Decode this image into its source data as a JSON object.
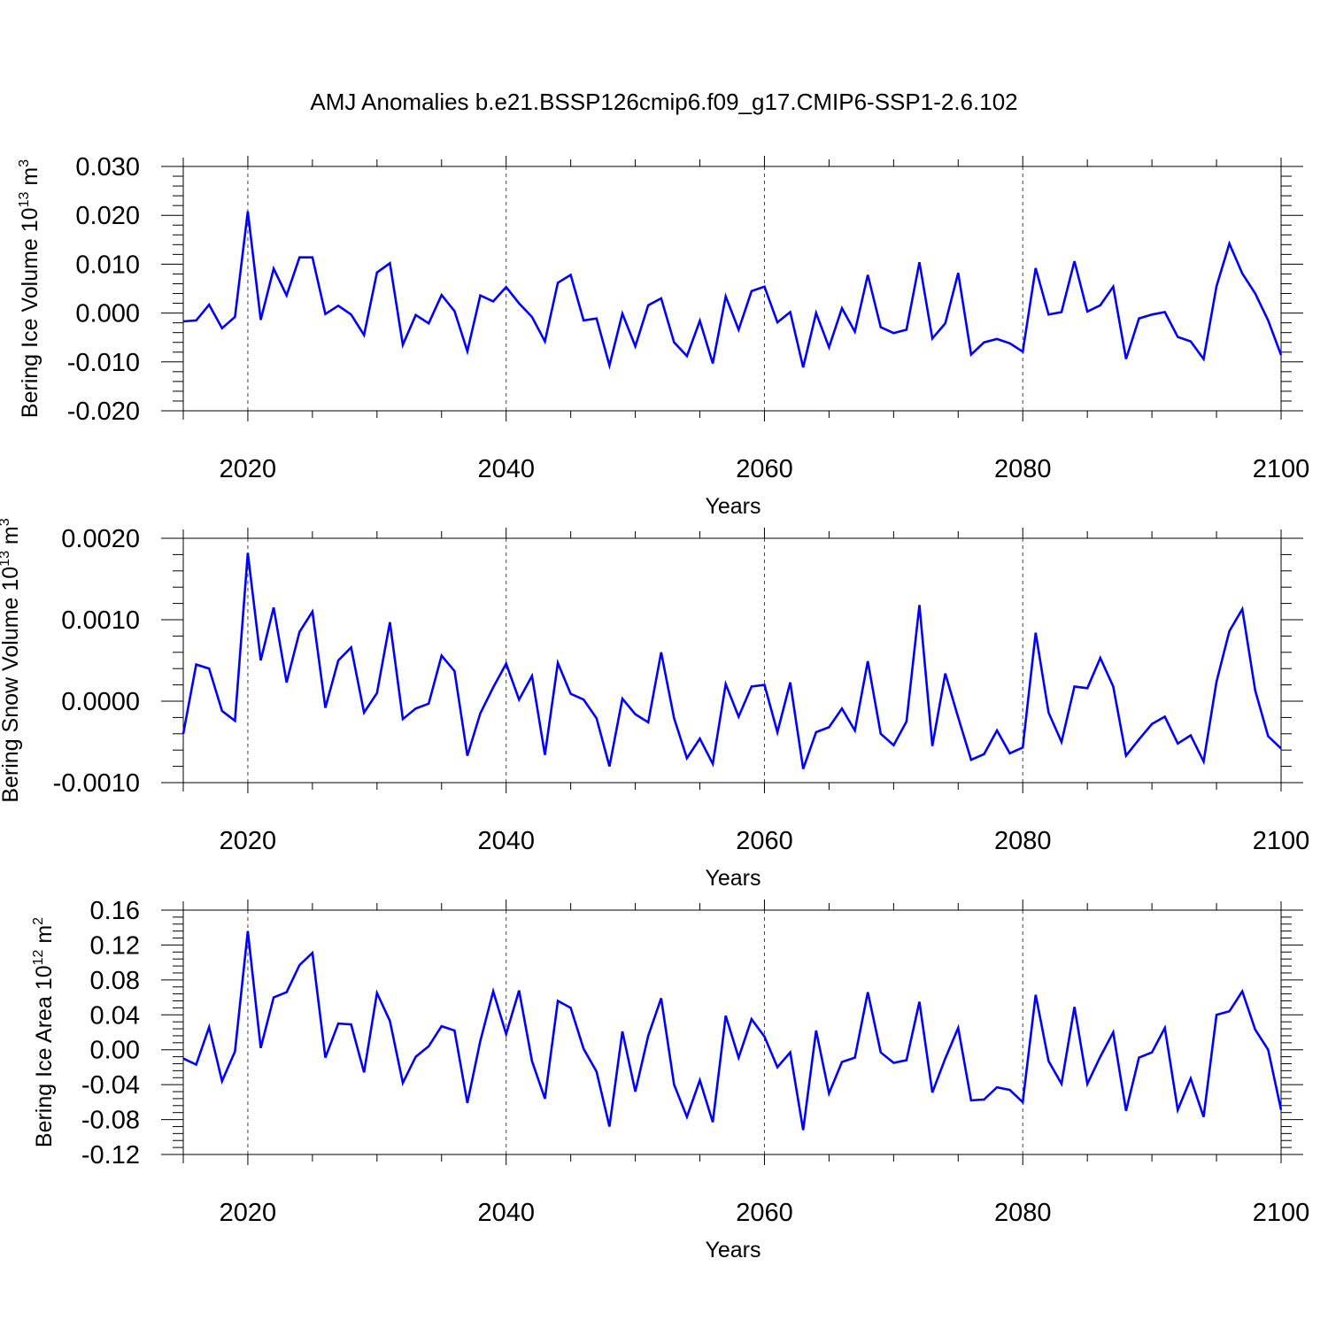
{
  "title": "AMJ Anomalies b.e21.BSSP126cmip6.f09_g17.CMIP6-SSP1-2.6.102",
  "line_color": "#0000ff",
  "chart_data": [
    {
      "type": "line",
      "ylabel_main": "Bering Ice Volume 10",
      "ylabel_exp": "13",
      "ylabel_unit": "m",
      "ylabel_unit_exp": "3",
      "xlabel": "Years",
      "xlim": [
        2015,
        2100
      ],
      "ylim": [
        -0.02,
        0.03
      ],
      "x_ticks": [
        2020,
        2040,
        2060,
        2080,
        2100
      ],
      "x_tick_labels": [
        "2020",
        "2040",
        "2060",
        "2080",
        "2100"
      ],
      "y_ticks": [
        -0.02,
        -0.01,
        0.0,
        0.01,
        0.02,
        0.03
      ],
      "y_tick_labels": [
        "-0.020",
        "-0.010",
        "0.000",
        "0.010",
        "0.020",
        "0.030"
      ],
      "grid": "dashed vertical at 2020, 2040, 2060, 2080",
      "x": [
        2015,
        2016,
        2017,
        2018,
        2019,
        2020,
        2021,
        2022,
        2023,
        2024,
        2025,
        2026,
        2027,
        2028,
        2029,
        2030,
        2031,
        2032,
        2033,
        2034,
        2035,
        2036,
        2037,
        2038,
        2039,
        2040,
        2041,
        2042,
        2043,
        2044,
        2045,
        2046,
        2047,
        2048,
        2049,
        2050,
        2051,
        2052,
        2053,
        2054,
        2055,
        2056,
        2057,
        2058,
        2059,
        2060,
        2061,
        2062,
        2063,
        2064,
        2065,
        2066,
        2067,
        2068,
        2069,
        2070,
        2071,
        2072,
        2073,
        2074,
        2075,
        2076,
        2077,
        2078,
        2079,
        2080,
        2081,
        2082,
        2083,
        2084,
        2085,
        2086,
        2087,
        2088,
        2089,
        2090,
        2091,
        2092,
        2093,
        2094,
        2095,
        2096,
        2097,
        2098,
        2099,
        2100
      ],
      "series": [
        {
          "values": [
            -0.0017,
            -0.0015,
            0.0017,
            -0.0031,
            -0.0008,
            0.0208,
            -0.0014,
            0.0091,
            0.0036,
            0.0114,
            0.0114,
            -0.0002,
            0.0015,
            -0.0003,
            -0.0045,
            0.0083,
            0.0102,
            -0.0065,
            -0.0004,
            -0.0021,
            0.0037,
            0.0004,
            -0.0078,
            0.0036,
            0.0024,
            0.0053,
            0.002,
            -0.0008,
            -0.0058,
            0.0062,
            0.0078,
            -0.0015,
            -0.0011,
            -0.0107,
            -0.0001,
            -0.0068,
            0.0016,
            0.003,
            -0.006,
            -0.0088,
            -0.0016,
            -0.0103,
            0.0034,
            -0.0034,
            0.0045,
            0.0054,
            -0.0019,
            0.0002,
            -0.0111,
            0.0,
            -0.007,
            0.001,
            -0.0038,
            0.0078,
            -0.0029,
            -0.0041,
            -0.0034,
            0.0104,
            -0.0052,
            -0.0021,
            0.0082,
            -0.0085,
            -0.006,
            -0.0053,
            -0.0062,
            -0.0079,
            0.0092,
            -0.0003,
            0.0002,
            0.0106,
            0.0003,
            0.0016,
            0.0054,
            -0.0094,
            -0.0011,
            -0.0003,
            0.0002,
            -0.0049,
            -0.0058,
            -0.0094,
            0.0055,
            0.0142,
            0.0081,
            0.004,
            -0.0015,
            -0.0086
          ]
        }
      ]
    },
    {
      "type": "line",
      "ylabel_main": "Bering Snow Volume 10",
      "ylabel_exp": "13",
      "ylabel_unit": "m",
      "ylabel_unit_exp": "3",
      "xlabel": "Years",
      "xlim": [
        2015,
        2100
      ],
      "ylim": [
        -0.001,
        0.002
      ],
      "x_ticks": [
        2020,
        2040,
        2060,
        2080,
        2100
      ],
      "x_tick_labels": [
        "2020",
        "2040",
        "2060",
        "2080",
        "2100"
      ],
      "y_ticks": [
        -0.001,
        0.0,
        0.001,
        0.002
      ],
      "y_tick_labels": [
        "-0.0010",
        "0.0000",
        "0.0010",
        "0.0020"
      ],
      "grid": "dashed vertical at 2020, 2040, 2060, 2080",
      "x": [
        2015,
        2016,
        2017,
        2018,
        2019,
        2020,
        2021,
        2022,
        2023,
        2024,
        2025,
        2026,
        2027,
        2028,
        2029,
        2030,
        2031,
        2032,
        2033,
        2034,
        2035,
        2036,
        2037,
        2038,
        2039,
        2040,
        2041,
        2042,
        2043,
        2044,
        2045,
        2046,
        2047,
        2048,
        2049,
        2050,
        2051,
        2052,
        2053,
        2054,
        2055,
        2056,
        2057,
        2058,
        2059,
        2060,
        2061,
        2062,
        2063,
        2064,
        2065,
        2066,
        2067,
        2068,
        2069,
        2070,
        2071,
        2072,
        2073,
        2074,
        2075,
        2076,
        2077,
        2078,
        2079,
        2080,
        2081,
        2082,
        2083,
        2084,
        2085,
        2086,
        2087,
        2088,
        2089,
        2090,
        2091,
        2092,
        2093,
        2094,
        2095,
        2096,
        2097,
        2098,
        2099,
        2100
      ],
      "series": [
        {
          "values": [
            -0.0004,
            0.00045,
            0.0004,
            -0.00012,
            -0.00024,
            0.00182,
            0.0005,
            0.00115,
            0.00023,
            0.00085,
            0.0011,
            -8e-05,
            0.0005,
            0.00066,
            -0.00014,
            0.0001,
            0.00097,
            -0.00022,
            -9e-05,
            -3e-05,
            0.00056,
            0.00037,
            -0.00067,
            -0.00015,
            0.00017,
            0.00046,
            2e-05,
            0.00031,
            -0.00066,
            0.00047,
            9e-05,
            2e-05,
            -0.00021,
            -0.0008,
            3e-05,
            -0.00016,
            -0.00026,
            0.0006,
            -0.00021,
            -0.0007,
            -0.00046,
            -0.00077,
            0.00021,
            -0.00019,
            0.00018,
            0.0002,
            -0.00038,
            0.00023,
            -0.00083,
            -0.00038,
            -0.00032,
            -9e-05,
            -0.00036,
            0.00049,
            -0.0004,
            -0.00054,
            -0.00025,
            0.00118,
            -0.00055,
            0.00034,
            -0.0002,
            -0.00072,
            -0.00065,
            -0.00036,
            -0.00064,
            -0.00057,
            0.00084,
            -0.00014,
            -0.0005,
            0.00018,
            0.00016,
            0.00053,
            0.00018,
            -0.00067,
            -0.00047,
            -0.00028,
            -0.00019,
            -0.00052,
            -0.00042,
            -0.00074,
            0.00024,
            0.00086,
            0.00113,
            0.00013,
            -0.00043,
            -0.00058
          ]
        }
      ]
    },
    {
      "type": "line",
      "ylabel_main": "Bering Ice Area 10",
      "ylabel_exp": "12",
      "ylabel_unit": "m",
      "ylabel_unit_exp": "2",
      "xlabel": "Years",
      "xlim": [
        2015,
        2100
      ],
      "ylim": [
        -0.12,
        0.16
      ],
      "x_ticks": [
        2020,
        2040,
        2060,
        2080,
        2100
      ],
      "x_tick_labels": [
        "2020",
        "2040",
        "2060",
        "2080",
        "2100"
      ],
      "y_ticks": [
        -0.12,
        -0.08,
        -0.04,
        0.0,
        0.04,
        0.08,
        0.12,
        0.16
      ],
      "y_tick_labels": [
        "-0.12",
        "-0.08",
        "-0.04",
        "0.00",
        "0.04",
        "0.08",
        "0.12",
        "0.16"
      ],
      "grid": "dashed vertical at 2020, 2040, 2060, 2080",
      "x": [
        2015,
        2016,
        2017,
        2018,
        2019,
        2020,
        2021,
        2022,
        2023,
        2024,
        2025,
        2026,
        2027,
        2028,
        2029,
        2030,
        2031,
        2032,
        2033,
        2034,
        2035,
        2036,
        2037,
        2038,
        2039,
        2040,
        2041,
        2042,
        2043,
        2044,
        2045,
        2046,
        2047,
        2048,
        2049,
        2050,
        2051,
        2052,
        2053,
        2054,
        2055,
        2056,
        2057,
        2058,
        2059,
        2060,
        2061,
        2062,
        2063,
        2064,
        2065,
        2066,
        2067,
        2068,
        2069,
        2070,
        2071,
        2072,
        2073,
        2074,
        2075,
        2076,
        2077,
        2078,
        2079,
        2080,
        2081,
        2082,
        2083,
        2084,
        2085,
        2086,
        2087,
        2088,
        2089,
        2090,
        2091,
        2092,
        2093,
        2094,
        2095,
        2096,
        2097,
        2098,
        2099,
        2100
      ],
      "series": [
        {
          "values": [
            -0.01,
            -0.017,
            0.026,
            -0.036,
            -0.002,
            0.136,
            0.002,
            0.06,
            0.066,
            0.097,
            0.111,
            -0.009,
            0.03,
            0.029,
            -0.026,
            0.065,
            0.033,
            -0.038,
            -0.008,
            0.004,
            0.027,
            0.022,
            -0.061,
            0.01,
            0.067,
            0.018,
            0.068,
            -0.013,
            -0.056,
            0.056,
            0.048,
            0.001,
            -0.025,
            -0.088,
            0.021,
            -0.048,
            0.016,
            0.059,
            -0.04,
            -0.077,
            -0.035,
            -0.083,
            0.039,
            -0.009,
            0.035,
            0.015,
            -0.02,
            -0.003,
            -0.092,
            0.022,
            -0.05,
            -0.014,
            -0.009,
            0.066,
            -0.003,
            -0.015,
            -0.012,
            0.055,
            -0.049,
            -0.01,
            0.025,
            -0.058,
            -0.057,
            -0.043,
            -0.046,
            -0.06,
            0.063,
            -0.013,
            -0.039,
            0.049,
            -0.039,
            -0.008,
            0.02,
            -0.07,
            -0.009,
            -0.003,
            0.025,
            -0.069,
            -0.033,
            -0.077,
            0.04,
            0.044,
            0.067,
            0.023,
            0.0,
            -0.069
          ]
        }
      ]
    }
  ]
}
